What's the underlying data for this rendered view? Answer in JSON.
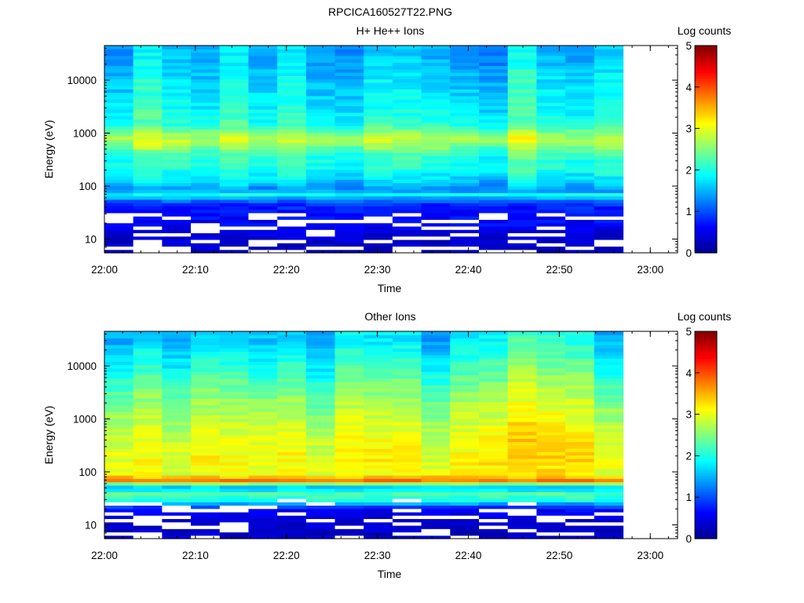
{
  "figure_title": "RPCICA160527T22.PNG",
  "colors": {
    "colormap": [
      "#00008f",
      "#0000ff",
      "#0080ff",
      "#00ffff",
      "#80ff80",
      "#ffff00",
      "#ff8000",
      "#ff0000",
      "#800000"
    ],
    "missing_data": "#ffffff",
    "axes": "#000000"
  },
  "chart_data": [
    {
      "type": "heatmap",
      "title": "H+ He++ Ions",
      "xlabel": "Time",
      "ylabel": "Energy (eV)",
      "x_tick_labels": [
        "22:00",
        "22:10",
        "22:20",
        "22:30",
        "22:40",
        "22:50",
        "23:00"
      ],
      "y_tick_labels": [
        "10",
        "100",
        "1000",
        "10000"
      ],
      "y_scale": "log",
      "x_range": [
        "22:00",
        "23:03"
      ],
      "y_range": [
        5.5,
        45000
      ],
      "data_time_range": [
        "22:00",
        "22:57"
      ],
      "colorbar_label": "Log counts",
      "colorbar_ticks": [
        "0",
        "1",
        "2",
        "3",
        "4",
        "5"
      ],
      "colorbar_range": [
        0,
        5
      ],
      "energy_profile_log_counts": [
        {
          "energy_ev": 7,
          "log_counts": 0.3
        },
        {
          "energy_ev": 12,
          "log_counts": 0.4
        },
        {
          "energy_ev": 20,
          "log_counts": 0.6
        },
        {
          "energy_ev": 30,
          "log_counts": 0.7
        },
        {
          "energy_ev": 45,
          "log_counts": 0.8
        },
        {
          "energy_ev": 55,
          "log_counts": 1.2
        },
        {
          "energy_ev": 70,
          "log_counts": 1.9
        },
        {
          "energy_ev": 85,
          "log_counts": 1.3
        },
        {
          "energy_ev": 110,
          "log_counts": 1.6
        },
        {
          "energy_ev": 200,
          "log_counts": 2.0
        },
        {
          "energy_ev": 400,
          "log_counts": 2.2
        },
        {
          "energy_ev": 760,
          "log_counts": 2.9
        },
        {
          "energy_ev": 1500,
          "log_counts": 2.1
        },
        {
          "energy_ev": 4000,
          "log_counts": 1.9
        },
        {
          "energy_ev": 10000,
          "log_counts": 1.8
        },
        {
          "energy_ev": 30000,
          "log_counts": 1.6
        }
      ]
    },
    {
      "type": "heatmap",
      "title": "Other Ions",
      "xlabel": "Time",
      "ylabel": "Energy (eV)",
      "x_tick_labels": [
        "22:00",
        "22:10",
        "22:20",
        "22:30",
        "22:40",
        "22:50",
        "23:00"
      ],
      "y_tick_labels": [
        "10",
        "100",
        "1000",
        "10000"
      ],
      "y_scale": "log",
      "x_range": [
        "22:00",
        "23:03"
      ],
      "y_range": [
        5.5,
        45000
      ],
      "data_time_range": [
        "22:00",
        "22:57"
      ],
      "colorbar_label": "Log counts",
      "colorbar_ticks": [
        "0",
        "1",
        "2",
        "3",
        "4",
        "5"
      ],
      "colorbar_range": [
        0,
        5
      ],
      "energy_profile_log_counts": [
        {
          "energy_ev": 7,
          "log_counts": 0.3
        },
        {
          "energy_ev": 12,
          "log_counts": 0.4
        },
        {
          "energy_ev": 20,
          "log_counts": 0.6
        },
        {
          "energy_ev": 30,
          "log_counts": 2.0
        },
        {
          "energy_ev": 40,
          "log_counts": 2.3
        },
        {
          "energy_ev": 50,
          "log_counts": 1.4
        },
        {
          "energy_ev": 60,
          "log_counts": 2.5
        },
        {
          "energy_ev": 70,
          "log_counts": 3.8
        },
        {
          "energy_ev": 90,
          "log_counts": 3.1
        },
        {
          "energy_ev": 150,
          "log_counts": 3.2
        },
        {
          "energy_ev": 400,
          "log_counts": 3.1
        },
        {
          "energy_ev": 1000,
          "log_counts": 2.9
        },
        {
          "energy_ev": 3000,
          "log_counts": 2.6
        },
        {
          "energy_ev": 10000,
          "log_counts": 2.2
        },
        {
          "energy_ev": 30000,
          "log_counts": 1.8
        }
      ]
    }
  ]
}
